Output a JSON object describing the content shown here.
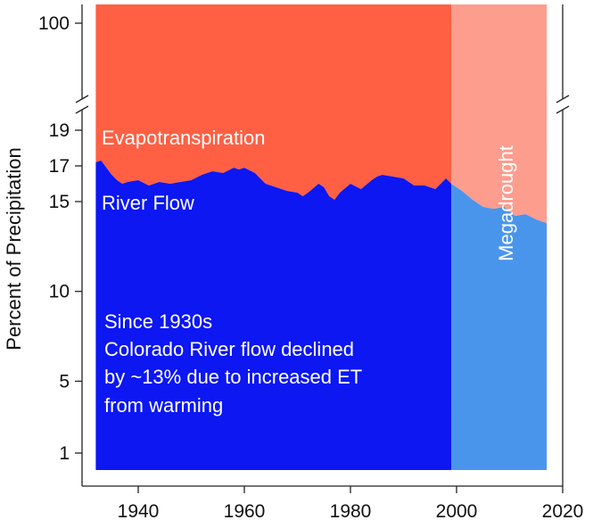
{
  "chart_data": {
    "type": "area",
    "ylabel": "Percent of Precipitation",
    "xlim": [
      1929,
      2022
    ],
    "x_ticks": [
      1940,
      1960,
      1980,
      2000,
      2020
    ],
    "x_tick_labels": [
      "1940",
      "1960",
      "1980",
      "2000",
      "2020"
    ],
    "y_ticks": [
      1,
      5,
      10,
      15,
      17,
      19,
      100
    ],
    "y_tick_labels": [
      "1",
      "5",
      "10",
      "15",
      "17",
      "19",
      "100"
    ],
    "y_axis_break": "between 19 and 100",
    "x_range": [
      1932,
      2017
    ],
    "megadrought_start": 1999,
    "series": [
      {
        "name": "River Flow",
        "x": [
          1932,
          1933,
          1934,
          1935,
          1936,
          1937,
          1938,
          1940,
          1942,
          1944,
          1946,
          1948,
          1950,
          1952,
          1954,
          1956,
          1958,
          1959,
          1960,
          1962,
          1964,
          1966,
          1968,
          1970,
          1971,
          1972,
          1974,
          1975,
          1976,
          1977,
          1978,
          1980,
          1982,
          1984,
          1985,
          1986,
          1988,
          1990,
          1992,
          1994,
          1996,
          1997,
          1998,
          1999,
          2001,
          2003,
          2005,
          2007,
          2009,
          2011,
          2013,
          2015,
          2017
        ],
        "y": [
          17.2,
          17.3,
          16.9,
          16.5,
          16.2,
          16.0,
          16.1,
          16.2,
          15.9,
          16.1,
          16.0,
          16.1,
          16.2,
          16.5,
          16.7,
          16.6,
          16.9,
          16.8,
          16.9,
          16.6,
          16.0,
          15.8,
          15.6,
          15.5,
          15.3,
          15.5,
          16.0,
          15.8,
          15.3,
          15.1,
          15.5,
          16.0,
          15.7,
          16.2,
          16.4,
          16.5,
          16.4,
          16.3,
          15.9,
          15.9,
          15.7,
          16.0,
          16.3,
          16.0,
          15.6,
          15.1,
          14.7,
          14.6,
          14.7,
          14.2,
          14.3,
          14.0,
          13.8
        ]
      },
      {
        "name": "Evapotranspiration",
        "note": "fills from River Flow up to 100"
      }
    ],
    "colors": {
      "river_flow": "#0c17f2",
      "evapotranspiration": "#ff5f43",
      "river_flow_megadrought": "#4a95ec",
      "evapotranspiration_megadrought": "#fd9d8e"
    },
    "annotations": {
      "evapotranspiration_label": "Evapotranspiration",
      "river_flow_label": "River Flow",
      "megadrought_label": "Megadrought",
      "note_lines": [
        "Since 1930s",
        "Colorado River flow declined",
        "by ~13% due to increased ET",
        "from warming"
      ]
    }
  }
}
